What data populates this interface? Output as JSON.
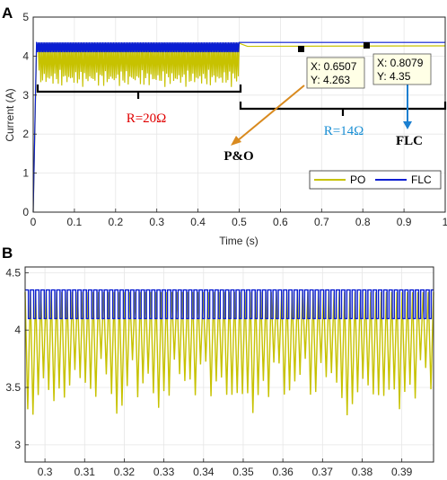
{
  "chart_data": [
    {
      "panel_label": "A",
      "type": "line",
      "xlabel": "Time (s)",
      "ylabel": "Current (A)",
      "xlim": [
        0,
        1
      ],
      "ylim": [
        0,
        5
      ],
      "xticks": [
        0,
        0.1,
        0.2,
        0.3,
        0.4,
        0.5,
        0.6,
        0.7,
        0.8,
        0.9,
        1
      ],
      "xtick_labels": [
        "0",
        "0.1",
        "0.2",
        "0.3",
        "0.4",
        "0.5",
        "0.6",
        "0.7",
        "0.8",
        "0.9",
        "1"
      ],
      "yticks": [
        0,
        1,
        2,
        3,
        4,
        5
      ],
      "ytick_labels": [
        "0",
        "1",
        "2",
        "3",
        "4",
        "5"
      ],
      "grid": true,
      "legend_position": "bottom-right",
      "series": [
        {
          "name": "PO",
          "color": "#c7c200",
          "description": "oscillating between about 3.2 and 4.33 A for 0.01-0.5 s, then about 4.263 A",
          "x": [
            0,
            0.008,
            0.012,
            0.1,
            0.2,
            0.3,
            0.4,
            0.49,
            0.5,
            0.52,
            0.6,
            0.6507,
            0.7,
            0.8,
            0.9,
            1
          ],
          "y": [
            0,
            4.1,
            3.9,
            3.6,
            3.6,
            3.6,
            3.6,
            3.6,
            3.8,
            4.25,
            4.263,
            4.263,
            4.263,
            4.263,
            4.263,
            4.263
          ]
        },
        {
          "name": "FLC",
          "color": "#0a1ed2",
          "description": "switching between about 4.1 and 4.35 A for 0.01-0.5 s, then about 4.35 A",
          "x": [
            0,
            0.008,
            0.1,
            0.2,
            0.3,
            0.4,
            0.5,
            0.6,
            0.7,
            0.8079,
            0.9,
            1
          ],
          "y": [
            0,
            4.35,
            4.23,
            4.23,
            4.23,
            4.23,
            4.35,
            4.35,
            4.35,
            4.35,
            4.35,
            4.35
          ]
        }
      ],
      "datatips": [
        {
          "x": 0.6507,
          "y": 4.263,
          "x_text": "X: 0.6507",
          "y_text": "Y: 4.263"
        },
        {
          "x": 0.8079,
          "y": 4.35,
          "x_text": "X: 0.8079",
          "y_text": "Y: 4.35"
        }
      ],
      "annotations": {
        "load_1": "R=20Ω",
        "load_1_span": [
          0.01,
          0.5
        ],
        "load_2": "R=14Ω",
        "load_2_span": [
          0.5,
          1
        ],
        "po_label": "P&O",
        "flc_label": "FLC",
        "load_1_color": "#e00000",
        "load_2_color": "#1a8fd4",
        "po_arrow_color": "#d98a1e",
        "flc_arrow_color": "#1a7fd0"
      }
    },
    {
      "panel_label": "B",
      "type": "line",
      "xlabel": "",
      "ylabel": "",
      "xlim": [
        0.295,
        0.398
      ],
      "ylim": [
        2.85,
        4.55
      ],
      "xticks": [
        0.3,
        0.31,
        0.32,
        0.33,
        0.34,
        0.35,
        0.36,
        0.37,
        0.38,
        0.39
      ],
      "xtick_labels": [
        "0.3",
        "0.31",
        "0.32",
        "0.33",
        "0.34",
        "0.35",
        "0.36",
        "0.37",
        "0.38",
        "0.39"
      ],
      "yticks": [
        3,
        3.5,
        4,
        4.5
      ],
      "ytick_labels": [
        "3",
        "3.5",
        "4",
        "4.5"
      ],
      "grid": true,
      "series": [
        {
          "color": "#c7c200",
          "description": "zoom of PO current: peaks about 4.33 A, dips between about 3.2 and 3.8 A",
          "x": [
            0.2965,
            0.3025,
            0.3105,
            0.3185,
            0.3285,
            0.3355,
            0.3465,
            0.3525,
            0.3615,
            0.3675,
            0.3765,
            0.3835,
            0.3895
          ],
          "y": [
            3.2,
            3.35,
            3.5,
            3.22,
            3.3,
            3.58,
            3.35,
            3.27,
            3.45,
            3.65,
            3.22,
            3.35,
            3.3
          ]
        },
        {
          "color": "#0a1ed2",
          "description": "zoom of FLC current: square switching between 4.1 and 4.35 A",
          "x": [
            0.295,
            0.398
          ],
          "y_low": 4.1,
          "y_high": 4.35,
          "period": 0.00133
        }
      ]
    }
  ]
}
